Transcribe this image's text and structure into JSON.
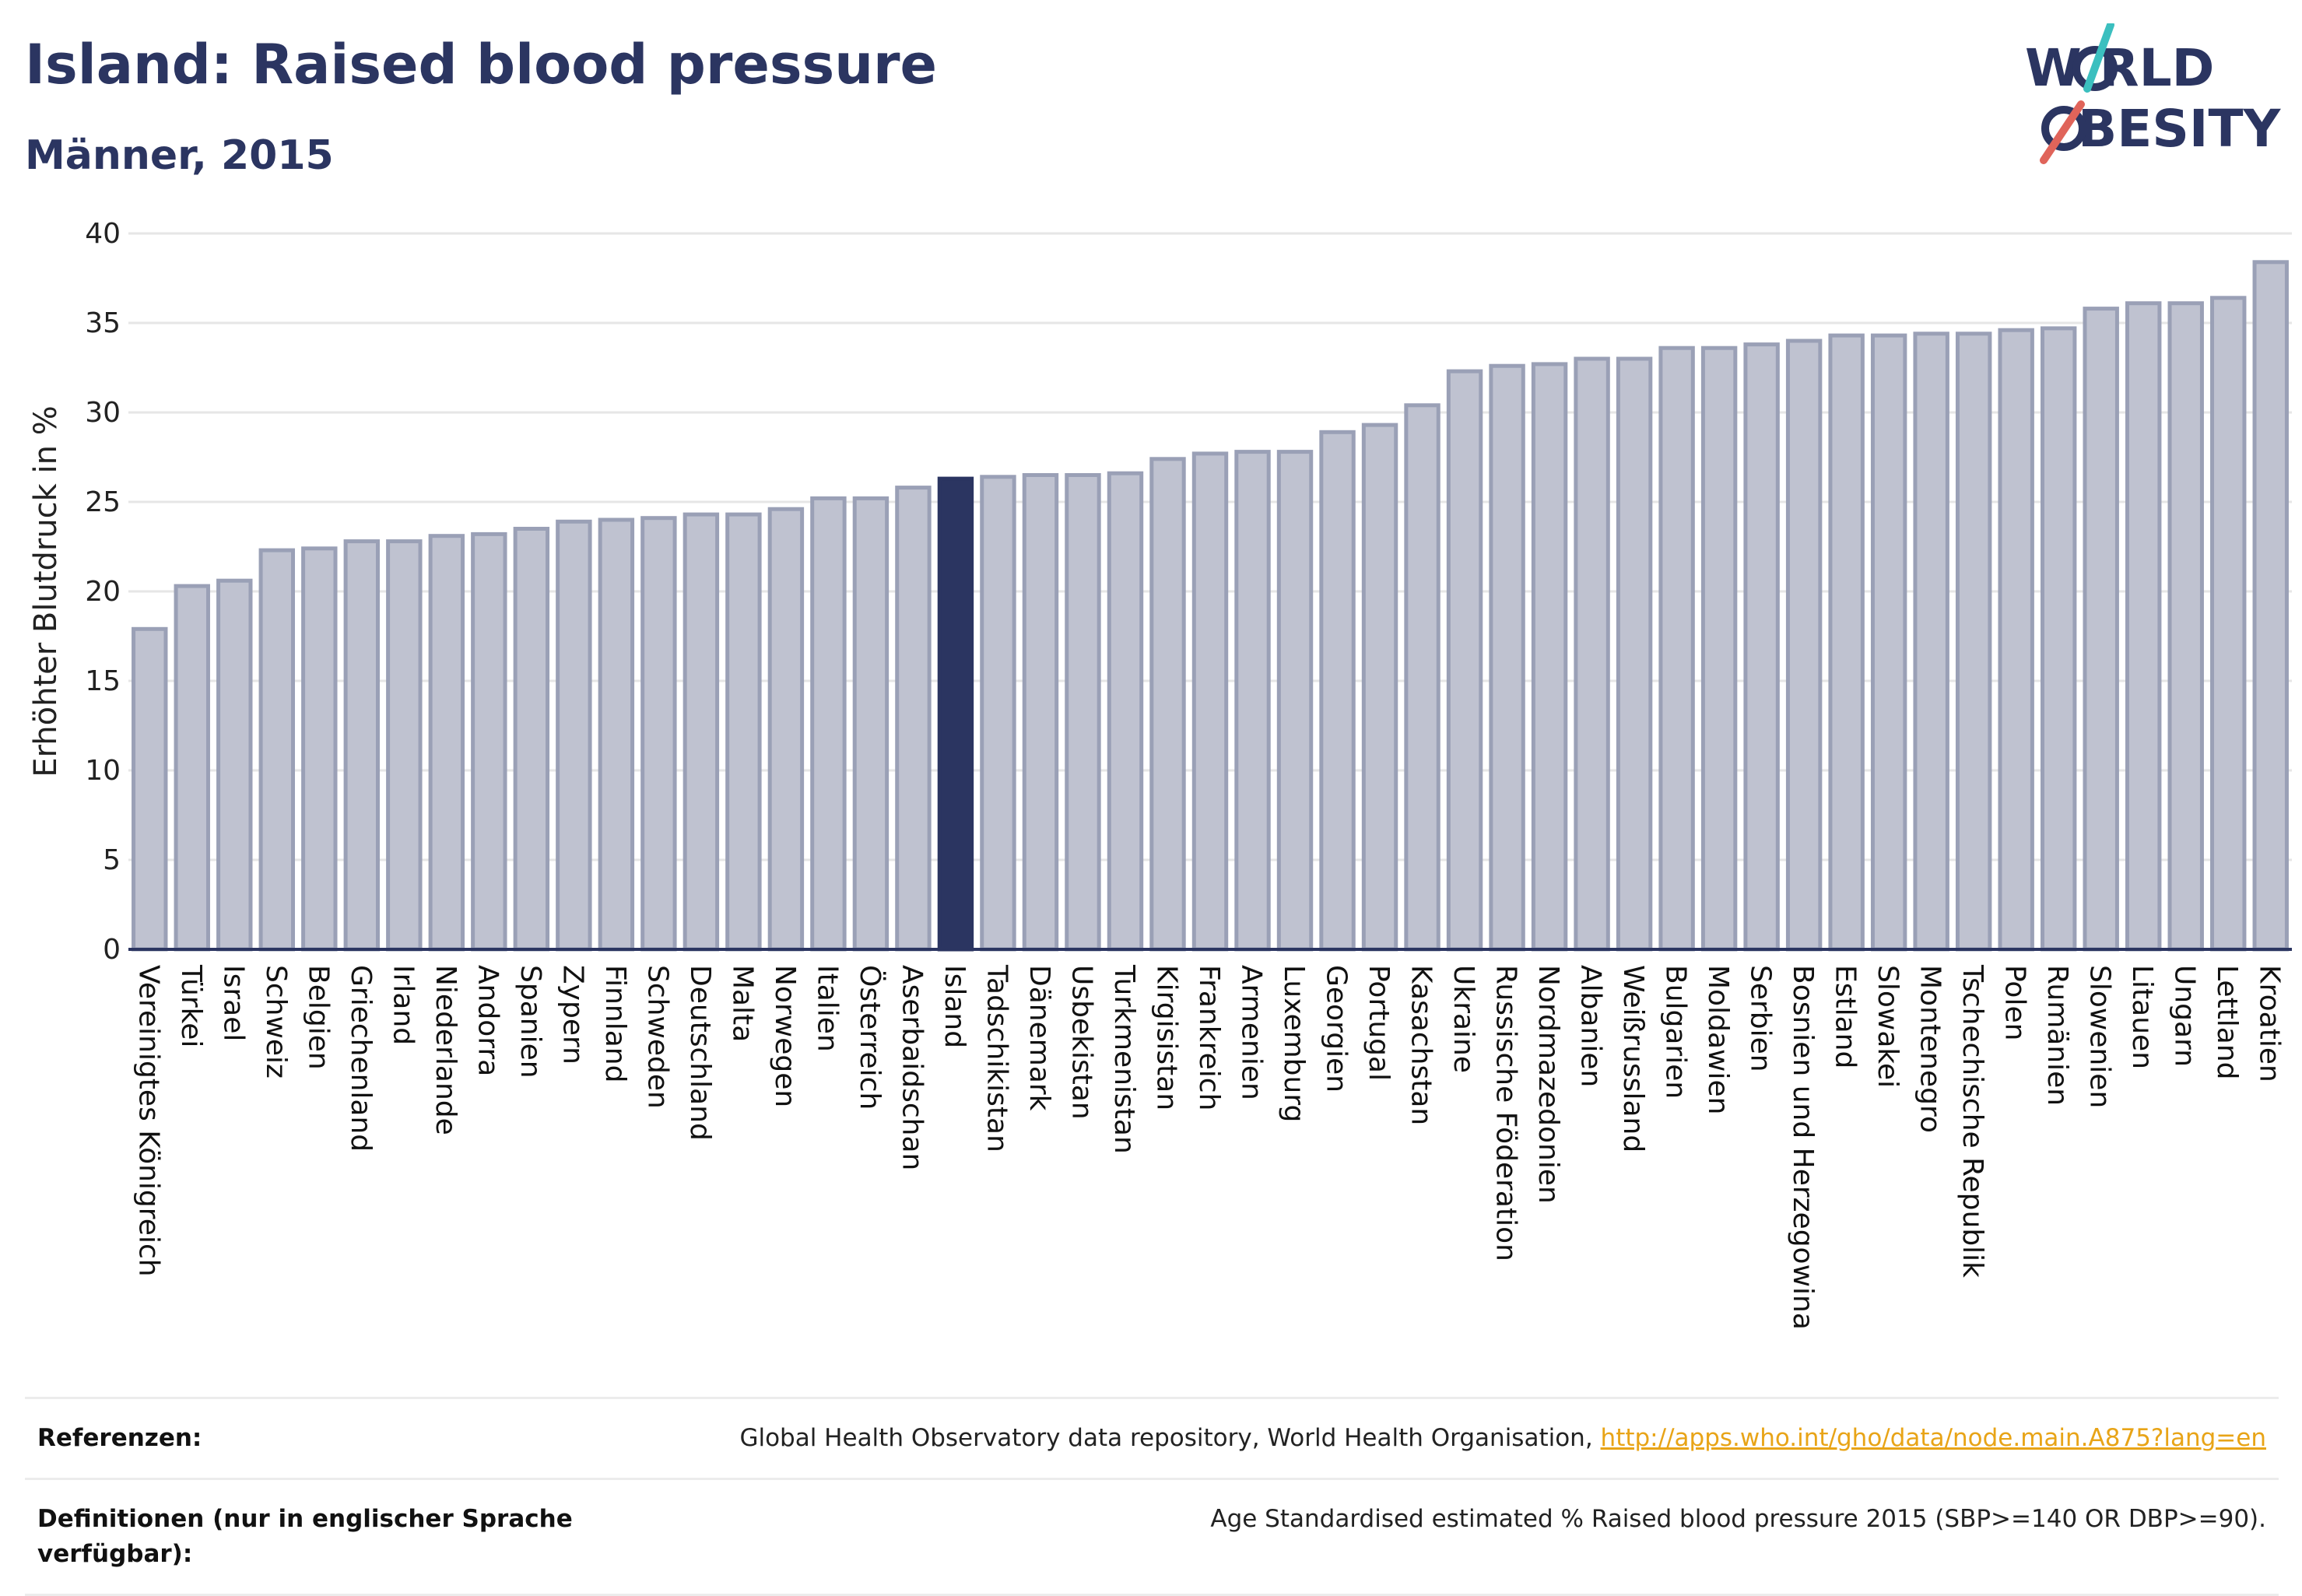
{
  "header": {
    "title": "Island: Raised blood pressure",
    "subtitle": "Männer, 2015"
  },
  "logo": {
    "line1": "W RLD",
    "line2": "BESITY",
    "colors": {
      "text": "#2b3561",
      "slash_teal": "#3bbfbf",
      "slash_red": "#e0645a"
    }
  },
  "colors": {
    "bar": "#bfc2d0",
    "bar_border": "#9aa0b6",
    "highlight": "#2b3561",
    "grid": "#e6e6e6",
    "axis": "#2b3561"
  },
  "chart_data": {
    "type": "bar",
    "ylabel": "Erhöhter Blutdruck in %",
    "ylim": [
      0,
      40
    ],
    "yticks": [
      0,
      5,
      10,
      15,
      20,
      25,
      30,
      35,
      40
    ],
    "grid": true,
    "highlight": "Island",
    "categories": [
      "Vereinigtes Königreich",
      "Türkei",
      "Israel",
      "Schweiz",
      "Belgien",
      "Griechenland",
      "Irland",
      "Niederlande",
      "Andorra",
      "Spanien",
      "Zypern",
      "Finnland",
      "Schweden",
      "Deutschland",
      "Malta",
      "Norwegen",
      "Italien",
      "Österreich",
      "Aserbaidschan",
      "Island",
      "Tadschikistan",
      "Dänemark",
      "Usbekistan",
      "Turkmenistan",
      "Kirgisistan",
      "Frankreich",
      "Armenien",
      "Luxemburg",
      "Georgien",
      "Portugal",
      "Kasachstan",
      "Ukraine",
      "Russische Föderation",
      "Nordmazedonien",
      "Albanien",
      "Weißrussland",
      "Bulgarien",
      "Moldawien",
      "Serbien",
      "Bosnien und Herzegowina",
      "Estland",
      "Slowakei",
      "Montenegro",
      "Tschechische Republik",
      "Polen",
      "Rumänien",
      "Slowenien",
      "Litauen",
      "Ungarn",
      "Lettland",
      "Kroatien"
    ],
    "values": [
      17.9,
      20.3,
      20.6,
      22.3,
      22.4,
      22.8,
      22.8,
      23.1,
      23.2,
      23.5,
      23.9,
      24.0,
      24.1,
      24.3,
      24.3,
      24.6,
      25.2,
      25.2,
      25.8,
      26.3,
      26.4,
      26.5,
      26.5,
      26.6,
      27.4,
      27.7,
      27.8,
      27.8,
      28.9,
      29.3,
      30.4,
      32.3,
      32.6,
      32.7,
      33.0,
      33.0,
      33.6,
      33.6,
      33.8,
      34.0,
      34.3,
      34.3,
      34.4,
      34.4,
      34.6,
      34.7,
      35.8,
      36.1,
      36.1,
      36.4,
      38.4
    ]
  },
  "references": {
    "ref_label": "Referenzen:",
    "ref_text": "Global Health Observatory data repository, World Health Organisation, ",
    "ref_link": "http://apps.who.int/gho/data/node.main.A875?lang=en",
    "def_label": "Definitionen (nur in englischer Sprache verfügbar):",
    "def_text": "Age Standardised estimated % Raised blood pressure 2015 (SBP>=140 OR DBP>=90)."
  }
}
